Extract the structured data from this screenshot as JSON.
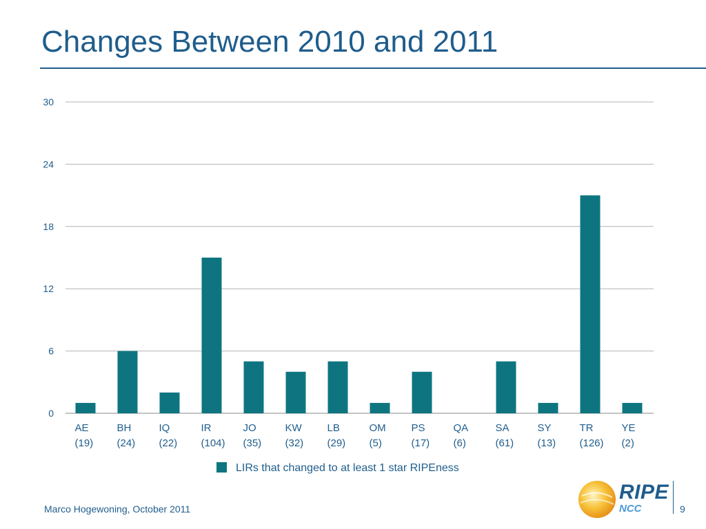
{
  "slide": {
    "title": "Changes Between 2010 and 2011",
    "footer": "Marco Hogewoning, October 2011",
    "page_number": "9"
  },
  "logo": {
    "brand": "RIPE",
    "sub": "NCC"
  },
  "colors": {
    "bar": "#0e7580",
    "text": "#1f5d8c",
    "grid": "#b3b3b3"
  },
  "chart_data": {
    "type": "bar",
    "categories": [
      "AE",
      "BH",
      "IQ",
      "IR",
      "JO",
      "KW",
      "LB",
      "OM",
      "PS",
      "QA",
      "SA",
      "SY",
      "TR",
      "YE"
    ],
    "category_counts": [
      "(19)",
      "(24)",
      "(22)",
      "(104)",
      "(35)",
      "(32)",
      "(29)",
      "(5)",
      "(17)",
      "(6)",
      "(61)",
      "(13)",
      "(126)",
      "(2)"
    ],
    "series": [
      {
        "name": "LIRs that changed to at least 1 star RIPEness",
        "values": [
          1,
          6,
          2,
          15,
          5,
          4,
          5,
          1,
          4,
          0,
          5,
          1,
          21,
          1
        ]
      }
    ],
    "ylim": [
      0,
      30
    ],
    "yticks": [
      0,
      6,
      12,
      18,
      24,
      30
    ],
    "grid": true,
    "legend_position": "bottom"
  }
}
